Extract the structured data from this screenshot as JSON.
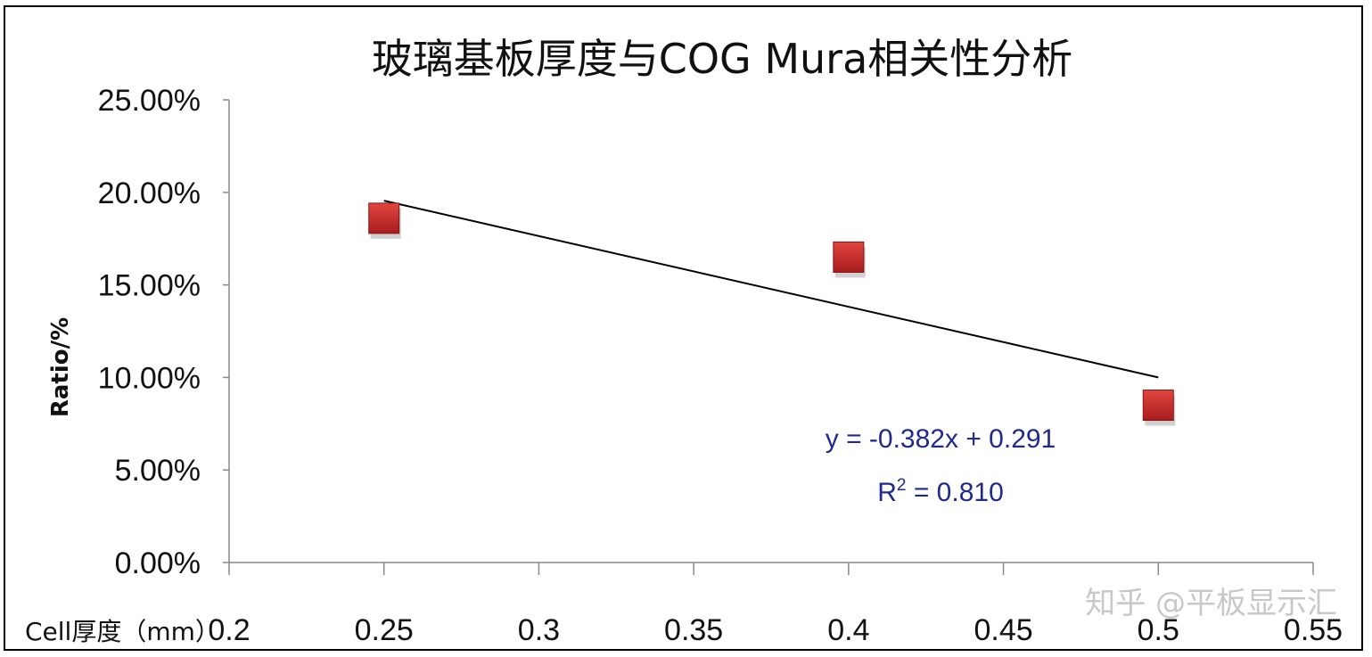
{
  "chart_data": {
    "type": "scatter",
    "title": "玻璃基板厚度与COG Mura相关性分析",
    "xlabel": "Cell厚度（mm）",
    "ylabel": "Ratio/%",
    "xlim": [
      0.2,
      0.55
    ],
    "ylim": [
      0,
      0.25
    ],
    "x_ticks": [
      "0.2",
      "0.25",
      "0.3",
      "0.35",
      "0.4",
      "0.45",
      "0.5",
      "0.55"
    ],
    "y_ticks": [
      "0.00%",
      "5.00%",
      "10.00%",
      "15.00%",
      "20.00%",
      "25.00%"
    ],
    "grid": false,
    "legend": "none",
    "marker_color": "#c0282a",
    "trendline_color": "#000000",
    "points": [
      {
        "x": 0.25,
        "y": 0.186
      },
      {
        "x": 0.4,
        "y": 0.165
      },
      {
        "x": 0.5,
        "y": 0.085
      }
    ],
    "trendline": {
      "slope": -0.382,
      "intercept": 0.291,
      "x_range": [
        0.25,
        0.5
      ]
    },
    "annotations": {
      "equation": "y = -0.382x + 0.291",
      "r2_prefix": "R",
      "r2_sup": "2",
      "r2_suffix": " = 0.810"
    }
  },
  "watermark": "知乎 @平板显示汇"
}
